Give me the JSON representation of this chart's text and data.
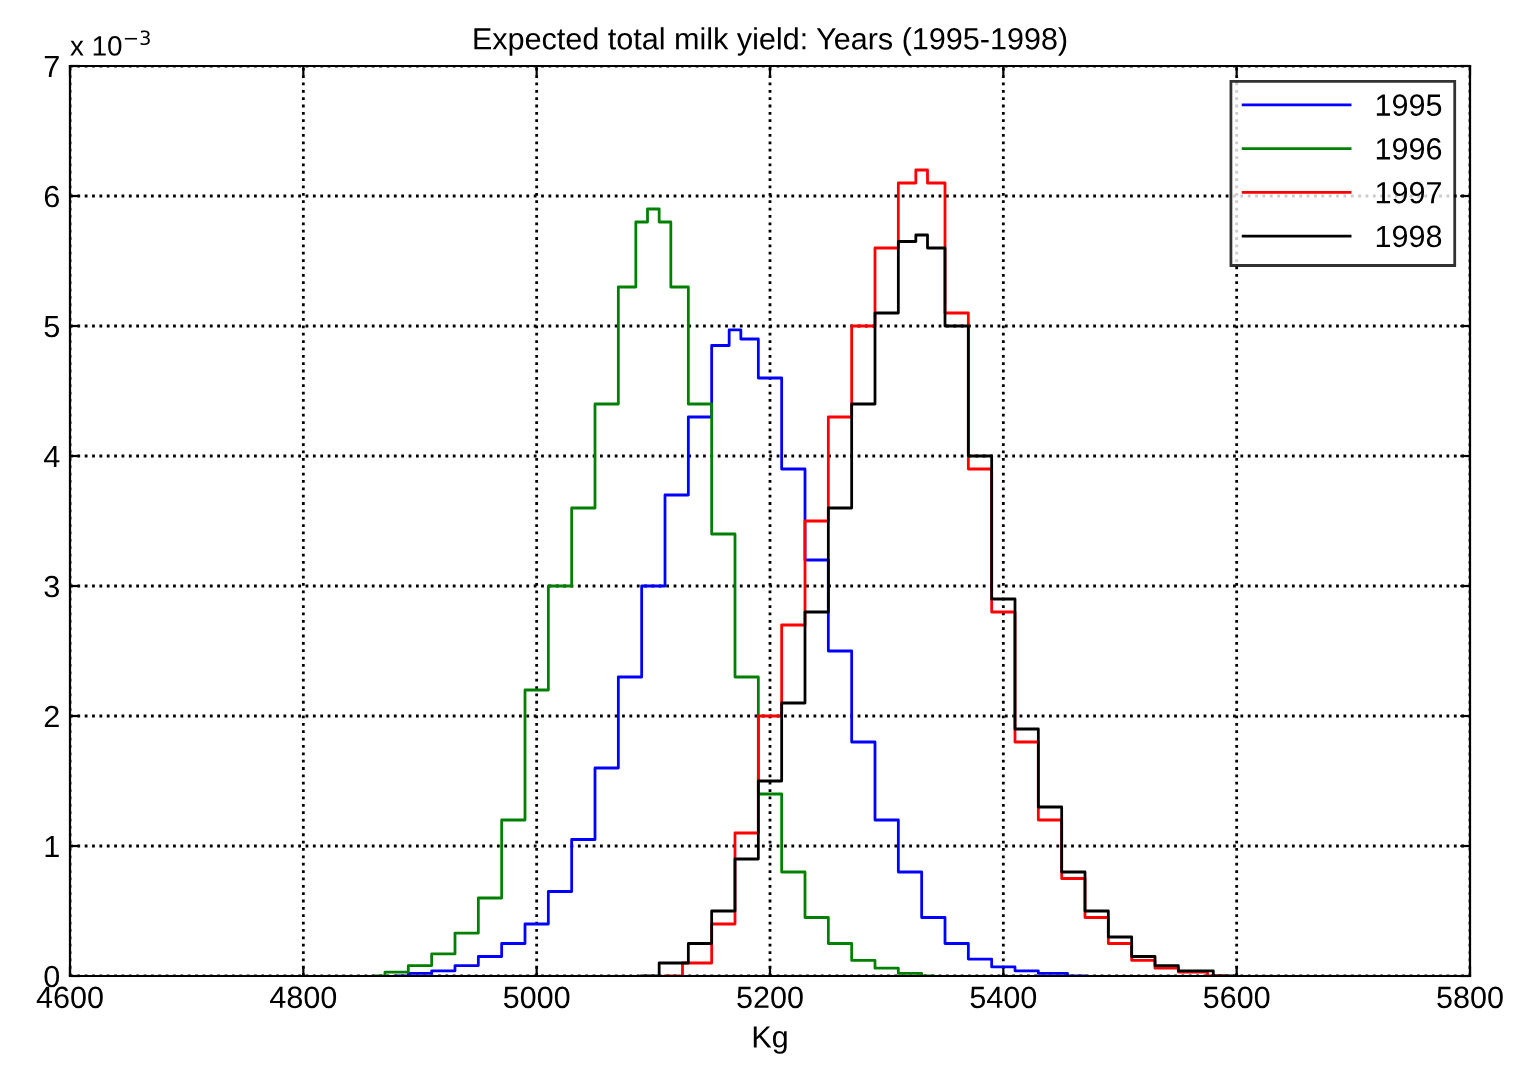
{
  "chart_data": {
    "type": "step",
    "title": "Expected total milk yield: Years (1995-1998)",
    "xlabel": "Kg",
    "annotations": [
      "x 10$^{−3}$"
    ],
    "xlim": [
      4600,
      5800
    ],
    "xticks": [
      4600,
      4800,
      5000,
      5200,
      5400,
      5600,
      5800
    ],
    "ylim": [
      0,
      7
    ],
    "yticks": [
      0,
      1,
      2,
      3,
      4,
      5,
      6,
      7
    ],
    "grid": true,
    "legend": "top right",
    "series": [
      {
        "name": "1995",
        "color": "#0000ff",
        "x": [
          4880,
          4900,
          4920,
          4940,
          4960,
          4980,
          5000,
          5020,
          5040,
          5060,
          5080,
          5100,
          5120,
          5140,
          5160,
          5170,
          5180,
          5200,
          5220,
          5240,
          5260,
          5280,
          5300,
          5320,
          5340,
          5360,
          5380,
          5400,
          5420,
          5440,
          5470
        ],
        "values": [
          0,
          0.02,
          0.04,
          0.08,
          0.15,
          0.25,
          0.4,
          0.65,
          1.05,
          1.6,
          2.3,
          3.0,
          3.7,
          4.3,
          4.85,
          4.97,
          4.9,
          4.6,
          3.9,
          3.2,
          2.5,
          1.8,
          1.2,
          0.8,
          0.45,
          0.25,
          0.13,
          0.07,
          0.04,
          0.02,
          0
        ]
      },
      {
        "name": "1996",
        "color": "#008000",
        "x": [
          4860,
          4880,
          4900,
          4920,
          4940,
          4960,
          4980,
          5000,
          5020,
          5040,
          5060,
          5080,
          5090,
          5100,
          5110,
          5120,
          5140,
          5160,
          5180,
          5200,
          5220,
          5240,
          5260,
          5280,
          5300,
          5320,
          5340
        ],
        "values": [
          0,
          0.03,
          0.08,
          0.17,
          0.33,
          0.6,
          1.2,
          2.2,
          3.0,
          3.6,
          4.4,
          5.3,
          5.8,
          5.9,
          5.8,
          5.3,
          4.4,
          3.4,
          2.3,
          1.4,
          0.8,
          0.45,
          0.25,
          0.12,
          0.06,
          0.02,
          0
        ]
      },
      {
        "name": "1997",
        "color": "#ff0000",
        "x": [
          5110,
          5140,
          5160,
          5180,
          5200,
          5220,
          5240,
          5260,
          5280,
          5300,
          5320,
          5330,
          5340,
          5360,
          5380,
          5400,
          5420,
          5440,
          5460,
          5480,
          5500,
          5520,
          5540,
          5560,
          5590
        ],
        "values": [
          0,
          0.1,
          0.4,
          1.1,
          2.0,
          2.7,
          3.5,
          4.3,
          5.0,
          5.6,
          6.1,
          6.2,
          6.1,
          5.1,
          3.9,
          2.8,
          1.8,
          1.2,
          0.75,
          0.45,
          0.25,
          0.12,
          0.06,
          0.03,
          0
        ]
      },
      {
        "name": "1998",
        "color": "#000000",
        "x": [
          5090,
          5120,
          5140,
          5160,
          5180,
          5200,
          5220,
          5240,
          5260,
          5280,
          5300,
          5320,
          5330,
          5340,
          5360,
          5380,
          5400,
          5420,
          5440,
          5460,
          5480,
          5500,
          5520,
          5540,
          5560,
          5600
        ],
        "values": [
          0,
          0.1,
          0.25,
          0.5,
          0.9,
          1.5,
          2.1,
          2.8,
          3.6,
          4.4,
          5.1,
          5.65,
          5.7,
          5.6,
          5.0,
          4.0,
          2.9,
          1.9,
          1.3,
          0.8,
          0.5,
          0.3,
          0.15,
          0.08,
          0.04,
          0
        ]
      }
    ]
  }
}
